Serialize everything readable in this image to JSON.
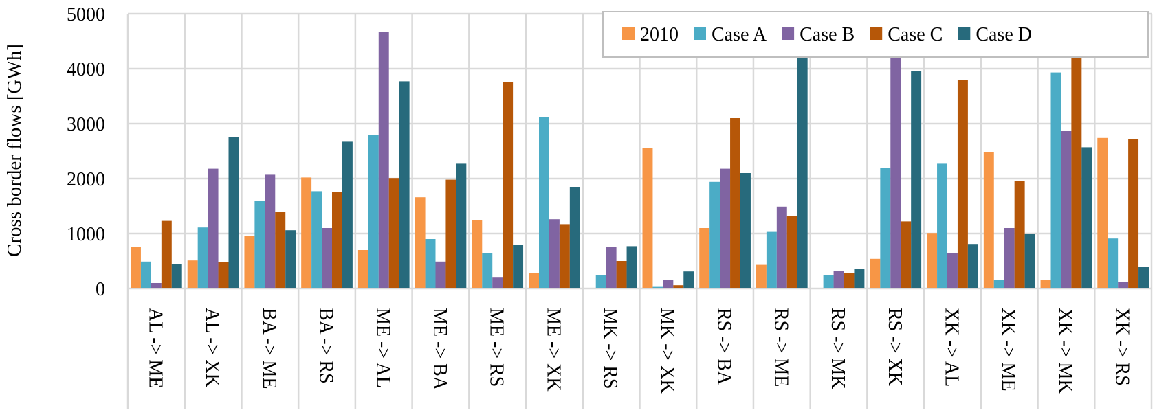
{
  "chart_data": {
    "type": "bar",
    "ylabel": "Cross border flows [GWh]",
    "ylim": [
      0,
      5000
    ],
    "yticks": [
      0,
      1000,
      2000,
      3000,
      4000,
      5000
    ],
    "grid": true,
    "legend_position": "top-right",
    "categories": [
      "AL -> ME",
      "AL -> XK",
      "BA -> ME",
      "BA -> RS",
      "ME -> AL",
      "ME -> BA",
      "ME -> RS",
      "ME -> XK",
      "MK -> RS",
      "MK -> XK",
      "RS -> BA",
      "RS -> ME",
      "RS -> MK",
      "RS -> XK",
      "XK -> AL",
      "XK -> ME",
      "XK -> MK",
      "XK -> RS"
    ],
    "series": [
      {
        "name": "2010",
        "color": "#f79646",
        "values": [
          750,
          510,
          950,
          2020,
          700,
          1660,
          1240,
          280,
          0,
          2560,
          1100,
          430,
          0,
          540,
          1010,
          2480,
          150,
          2740
        ]
      },
      {
        "name": "Case A",
        "color": "#4bacc6",
        "values": [
          490,
          1110,
          1600,
          1770,
          2800,
          900,
          640,
          3120,
          240,
          30,
          1940,
          1030,
          240,
          2200,
          2270,
          150,
          3930,
          910
        ]
      },
      {
        "name": "Case B",
        "color": "#8064a2",
        "values": [
          100,
          2180,
          2070,
          1100,
          4670,
          490,
          210,
          1260,
          760,
          160,
          2180,
          1490,
          320,
          4220,
          650,
          1100,
          2870,
          120
        ]
      },
      {
        "name": "Case C",
        "color": "#b65708",
        "values": [
          1230,
          480,
          1390,
          1760,
          2010,
          1980,
          3760,
          1170,
          500,
          60,
          3100,
          1320,
          280,
          1220,
          3790,
          1960,
          4220,
          2720
        ]
      },
      {
        "name": "Case D",
        "color": "#276a7c",
        "values": [
          440,
          2760,
          1060,
          2670,
          3770,
          2270,
          790,
          1850,
          770,
          310,
          2100,
          4220,
          360,
          3960,
          810,
          1000,
          2570,
          390
        ]
      }
    ]
  }
}
